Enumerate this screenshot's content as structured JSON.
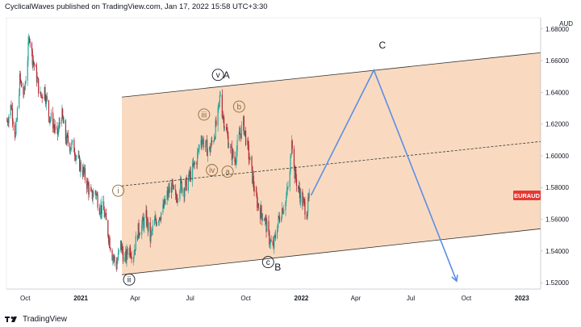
{
  "header": {
    "text": "CyclicalWaves published on TradingView.com, Jan 17, 2022 15:58 UTC+3:30"
  },
  "footer": {
    "logo_icon": "tradingview-logo-icon",
    "brand": "TradingView"
  },
  "chart_data": {
    "type": "candlestick",
    "symbol": "EURAUD",
    "currency": "AUD",
    "y_ticks": [
      "1.68000",
      "1.66000",
      "1.64000",
      "1.62000",
      "1.60000",
      "1.58000",
      "1.56000",
      "1.54000",
      "1.52000"
    ],
    "y_range": [
      1.516,
      1.687
    ],
    "x_labels": [
      "Oct",
      "2021",
      "Apr",
      "Jul",
      "Oct",
      "2022",
      "Apr",
      "Jul",
      "Oct",
      "2023"
    ],
    "x_range": [
      "2020-08-31",
      "2023-02-01"
    ],
    "last_price_label": "EURAUD",
    "colors": {
      "up": "#26a69a",
      "down": "#b22833",
      "channel": "#f7ceab",
      "projection": "#5b8ee6",
      "label_bg": "#e53935"
    },
    "ohlc_path": [
      [
        "2020-09-01",
        1.622
      ],
      [
        "2020-09-08",
        1.632
      ],
      [
        "2020-09-15",
        1.612
      ],
      [
        "2020-09-22",
        1.648
      ],
      [
        "2020-09-29",
        1.638
      ],
      [
        "2020-10-05",
        1.662
      ],
      [
        "2020-10-08",
        1.677
      ],
      [
        "2020-10-12",
        1.664
      ],
      [
        "2020-10-19",
        1.652
      ],
      [
        "2020-10-26",
        1.637
      ],
      [
        "2020-11-02",
        1.642
      ],
      [
        "2020-11-09",
        1.626
      ],
      [
        "2020-11-16",
        1.621
      ],
      [
        "2020-11-23",
        1.612
      ],
      [
        "2020-11-30",
        1.627
      ],
      [
        "2020-12-07",
        1.611
      ],
      [
        "2020-12-14",
        1.607
      ],
      [
        "2020-12-21",
        1.605
      ],
      [
        "2020-12-28",
        1.596
      ],
      [
        "2021-01-04",
        1.591
      ],
      [
        "2021-01-11",
        1.583
      ],
      [
        "2021-01-18",
        1.574
      ],
      [
        "2021-01-25",
        1.578
      ],
      [
        "2021-02-01",
        1.568
      ],
      [
        "2021-02-08",
        1.565
      ],
      [
        "2021-02-15",
        1.552
      ],
      [
        "2021-02-22",
        1.538
      ],
      [
        "2021-03-01",
        1.531
      ],
      [
        "2021-03-08",
        1.544
      ],
      [
        "2021-03-15",
        1.534
      ],
      [
        "2021-03-22",
        1.542
      ],
      [
        "2021-03-29",
        1.538
      ],
      [
        "2021-04-05",
        1.552
      ],
      [
        "2021-04-12",
        1.556
      ],
      [
        "2021-04-19",
        1.561
      ],
      [
        "2021-04-26",
        1.548
      ],
      [
        "2021-05-03",
        1.558
      ],
      [
        "2021-05-10",
        1.562
      ],
      [
        "2021-05-17",
        1.566
      ],
      [
        "2021-05-24",
        1.575
      ],
      [
        "2021-05-31",
        1.581
      ],
      [
        "2021-06-07",
        1.572
      ],
      [
        "2021-06-14",
        1.582
      ],
      [
        "2021-06-21",
        1.579
      ],
      [
        "2021-06-28",
        1.585
      ],
      [
        "2021-07-05",
        1.591
      ],
      [
        "2021-07-12",
        1.598
      ],
      [
        "2021-07-19",
        1.612
      ],
      [
        "2021-07-26",
        1.606
      ],
      [
        "2021-08-02",
        1.603
      ],
      [
        "2021-08-09",
        1.612
      ],
      [
        "2021-08-16",
        1.625
      ],
      [
        "2021-08-20",
        1.64
      ],
      [
        "2021-08-23",
        1.628
      ],
      [
        "2021-08-30",
        1.615
      ],
      [
        "2021-09-06",
        1.603
      ],
      [
        "2021-09-13",
        1.597
      ],
      [
        "2021-09-20",
        1.612
      ],
      [
        "2021-09-27",
        1.62
      ],
      [
        "2021-10-04",
        1.605
      ],
      [
        "2021-10-11",
        1.589
      ],
      [
        "2021-10-18",
        1.573
      ],
      [
        "2021-10-25",
        1.565
      ],
      [
        "2021-11-01",
        1.561
      ],
      [
        "2021-11-08",
        1.549
      ],
      [
        "2021-11-15",
        1.541
      ],
      [
        "2021-11-22",
        1.556
      ],
      [
        "2021-11-29",
        1.566
      ],
      [
        "2021-12-06",
        1.571
      ],
      [
        "2021-12-13",
        1.588
      ],
      [
        "2021-12-16",
        1.614
      ],
      [
        "2021-12-20",
        1.591
      ],
      [
        "2021-12-27",
        1.579
      ],
      [
        "2022-01-03",
        1.571
      ],
      [
        "2022-01-10",
        1.565
      ],
      [
        "2022-01-14",
        1.573
      ]
    ],
    "channel": {
      "upper": [
        [
          "2021-03-10",
          1.637
        ],
        [
          "2023-02-01",
          1.665
        ]
      ],
      "lower": [
        [
          "2021-03-10",
          1.525
        ],
        [
          "2023-02-01",
          1.554
        ]
      ],
      "mid": [
        [
          "2021-03-10",
          1.581
        ],
        [
          "2023-02-01",
          1.609
        ]
      ]
    },
    "projection": [
      [
        "2022-01-17",
        1.575
      ],
      [
        "2022-05-01",
        1.654
      ],
      [
        "2022-09-15",
        1.521
      ]
    ],
    "wave_labels": [
      {
        "text": "i",
        "date": "2021-03-04",
        "price": 1.578,
        "circled": true,
        "color": "#8a6a3c"
      },
      {
        "text": "ii",
        "date": "2021-03-22",
        "price": 1.522,
        "circled": true,
        "color": "#131722"
      },
      {
        "text": "iii",
        "date": "2021-07-24",
        "price": 1.626,
        "circled": true,
        "color": "#8a6a3c"
      },
      {
        "text": "iv",
        "date": "2021-08-06",
        "price": 1.591,
        "circled": true,
        "color": "#8a6a3c"
      },
      {
        "text": "v",
        "date": "2021-08-16",
        "price": 1.651,
        "circled": true,
        "color": "#131722"
      },
      {
        "text": "A",
        "date": "2021-08-30",
        "price": 1.651,
        "circled": false,
        "color": "#131722"
      },
      {
        "text": "b",
        "date": "2021-09-20",
        "price": 1.631,
        "circled": true,
        "color": "#8a6a3c"
      },
      {
        "text": "a",
        "date": "2021-09-01",
        "price": 1.59,
        "circled": true,
        "color": "#8a6a3c"
      },
      {
        "text": "c",
        "date": "2021-11-07",
        "price": 1.533,
        "circled": true,
        "color": "#131722"
      },
      {
        "text": "B",
        "date": "2021-11-23",
        "price": 1.53,
        "circled": false,
        "color": "#131722"
      },
      {
        "text": "C",
        "date": "2022-05-15",
        "price": 1.67,
        "circled": false,
        "color": "#131722"
      }
    ]
  }
}
